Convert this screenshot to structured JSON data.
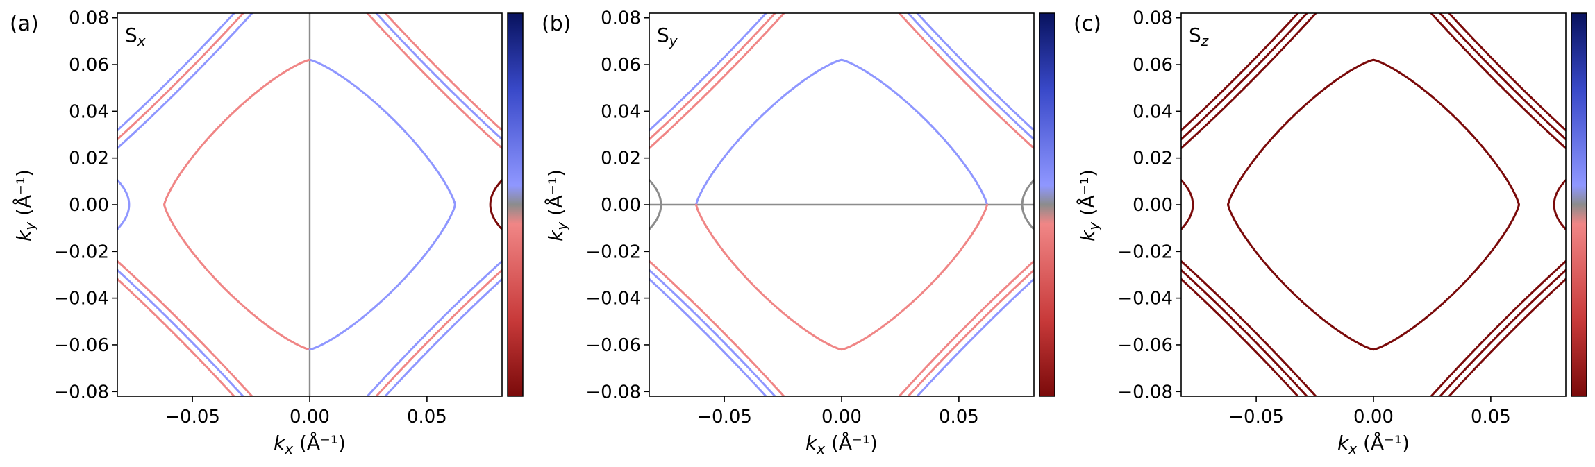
{
  "colors": {
    "blue_dark": "#08125e",
    "blue_light": "#8f97ff",
    "neutral": "#8c8c8c",
    "red_light": "#f08686",
    "red_dark": "#7a0a0a",
    "zero_line": "#8c8c8c"
  },
  "chart_data": [
    {
      "type": "line",
      "panel_label": "(a)",
      "title": "S_x",
      "title_main": "S",
      "title_sub": "x",
      "xlabel": "k_x (Å⁻¹)",
      "xlabel_main": "k",
      "xlabel_sub": "x",
      "xlabel_unit": " (Å⁻¹)",
      "ylabel": "k_y (Å⁻¹)",
      "ylabel_main": "k",
      "ylabel_sub": "y",
      "ylabel_unit": " (Å⁻¹)",
      "xlim": [
        -0.082,
        0.082
      ],
      "ylim": [
        -0.082,
        0.082
      ],
      "xticks": [
        -0.05,
        0.0,
        0.05
      ],
      "xtick_labels": [
        "−0.05",
        "0.00",
        "0.05"
      ],
      "yticks": [
        0.08,
        0.06,
        0.04,
        0.02,
        0.0,
        -0.02,
        -0.04,
        -0.06,
        -0.08
      ],
      "ytick_labels": [
        "0.08",
        "0.06",
        "0.04",
        "0.02",
        "0.00",
        "−0.02",
        "−0.04",
        "−0.06",
        "−0.08"
      ],
      "grid": false,
      "zero_line": "vertical",
      "colorbar": "blue-to-red"
    },
    {
      "type": "line",
      "panel_label": "(b)",
      "title": "S_y",
      "title_main": "S",
      "title_sub": "y",
      "xlabel": "k_x (Å⁻¹)",
      "xlabel_main": "k",
      "xlabel_sub": "x",
      "xlabel_unit": " (Å⁻¹)",
      "ylabel": "k_y (Å⁻¹)",
      "ylabel_main": "k",
      "ylabel_sub": "y",
      "ylabel_unit": " (Å⁻¹)",
      "xlim": [
        -0.082,
        0.082
      ],
      "ylim": [
        -0.082,
        0.082
      ],
      "xticks": [
        -0.05,
        0.0,
        0.05
      ],
      "xtick_labels": [
        "−0.05",
        "0.00",
        "0.05"
      ],
      "yticks": [
        0.08,
        0.06,
        0.04,
        0.02,
        0.0,
        -0.02,
        -0.04,
        -0.06,
        -0.08
      ],
      "ytick_labels": [
        "0.08",
        "0.06",
        "0.04",
        "0.02",
        "0.00",
        "−0.02",
        "−0.04",
        "−0.06",
        "−0.08"
      ],
      "grid": false,
      "zero_line": "horizontal",
      "colorbar": "blue-to-red"
    },
    {
      "type": "line",
      "panel_label": "(c)",
      "title": "S_z",
      "title_main": "S",
      "title_sub": "z",
      "xlabel": "k_x (Å⁻¹)",
      "xlabel_main": "k",
      "xlabel_sub": "x",
      "xlabel_unit": " (Å⁻¹)",
      "ylabel": "k_y (Å⁻¹)",
      "ylabel_main": "k",
      "ylabel_sub": "y",
      "ylabel_unit": " (Å⁻¹)",
      "xlim": [
        -0.082,
        0.082
      ],
      "ylim": [
        -0.082,
        0.082
      ],
      "xticks": [
        -0.05,
        0.0,
        0.05
      ],
      "xtick_labels": [
        "−0.05",
        "0.00",
        "0.05"
      ],
      "yticks": [
        0.08,
        0.06,
        0.04,
        0.02,
        0.0,
        -0.02,
        -0.04,
        -0.06,
        -0.08
      ],
      "ytick_labels": [
        "0.08",
        "0.06",
        "0.04",
        "0.02",
        "0.00",
        "−0.02",
        "−0.04",
        "−0.06",
        "−0.08"
      ],
      "grid": false,
      "zero_line": "none",
      "colorbar": "blue-to-red"
    }
  ],
  "contours": {
    "inner_pocket": {
      "shape": "rounded-diamond",
      "kx_extent": 0.062,
      "ky_extent": 0.062
    },
    "side_pockets": {
      "kx_vertex": 0.077,
      "ky_extent": 0.011
    },
    "corner_bands": [
      {
        "kx_at_ky_0_03": 0.082,
        "slope": -1.0
      },
      {
        "kx_at_ky_0_03": 0.082,
        "slope": -1.0
      },
      {
        "kx_at_ky_0_03": 0.082,
        "slope": -1.0
      }
    ],
    "corner_band_y_intercepts": [
      0.111,
      0.115,
      0.119
    ]
  }
}
